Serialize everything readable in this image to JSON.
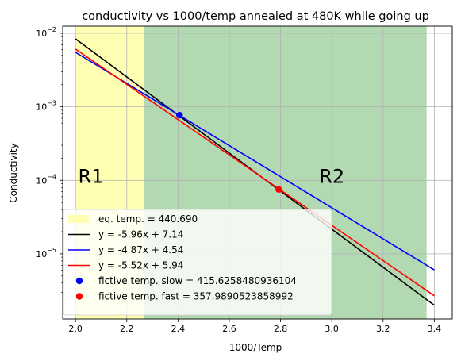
{
  "chart_data": {
    "type": "line",
    "title": "conductivity vs 1000/temp annealed at 480K while going up",
    "xlabel": "1000/Temp",
    "ylabel": "Conductivity",
    "xlim": [
      1.95,
      3.47
    ],
    "ylim": [
      1.3e-06,
      0.0125
    ],
    "yscale": "log",
    "grid": true,
    "legend_position": "lower-left",
    "x_ticks": [
      2.0,
      2.2,
      2.4,
      2.6,
      2.8,
      3.0,
      3.2,
      3.4
    ],
    "x_tick_labels": [
      "2.0",
      "2.2",
      "2.4",
      "2.6",
      "2.8",
      "3.0",
      "3.2",
      "3.4"
    ],
    "y_ticks": [
      1e-05,
      0.0001,
      0.001,
      0.01
    ],
    "y_tick_labels": [
      {
        "base": "10",
        "exp": "−5"
      },
      {
        "base": "10",
        "exp": "−4"
      },
      {
        "base": "10",
        "exp": "−3"
      },
      {
        "base": "10",
        "exp": "−2"
      }
    ],
    "regions": [
      {
        "label": "R1",
        "x_start": 2.0,
        "x_end": 2.269,
        "color": "#ffffb3",
        "label_x": 2.06,
        "label_y": 0.000115
      },
      {
        "label": "R2",
        "x_start": 2.269,
        "x_end": 3.37,
        "color": "#b3d9b3",
        "label_x": 3.0,
        "label_y": 0.000115
      }
    ],
    "series": [
      {
        "name": "y = -5.96x + 7.14",
        "type": "line",
        "color": "#000000",
        "slope": -5.96,
        "intercept": 7.14,
        "x": [
          2.0,
          3.4
        ]
      },
      {
        "name": "y = -4.87x + 4.54",
        "type": "line",
        "color": "#0000ff",
        "slope": -4.87,
        "intercept": 4.54,
        "x": [
          2.0,
          3.4
        ]
      },
      {
        "name": "y = -5.52x + 5.94",
        "type": "line",
        "color": "#ff0000",
        "slope": -5.52,
        "intercept": 5.94,
        "x": [
          2.0,
          3.4
        ]
      }
    ],
    "points": [
      {
        "name": "fictive temp. slow = 415.6258480936104",
        "color": "#0000ff",
        "x": 2.406,
        "y": 0.00077
      },
      {
        "name": "fictive temp. fast = 357.9890523858992",
        "color": "#ff0000",
        "x": 2.793,
        "y": 7.5e-05
      }
    ],
    "legend": [
      {
        "kind": "patch",
        "color": "#ffffb3",
        "label": "eq. temp. = 440.690"
      },
      {
        "kind": "line",
        "color": "#000000",
        "label": "y = -5.96x + 7.14"
      },
      {
        "kind": "line",
        "color": "#0000ff",
        "label": "y = -4.87x + 4.54"
      },
      {
        "kind": "line",
        "color": "#ff0000",
        "label": "y = -5.52x + 5.94"
      },
      {
        "kind": "dot",
        "color": "#0000ff",
        "label": "fictive temp. slow = 415.6258480936104"
      },
      {
        "kind": "dot",
        "color": "#ff0000",
        "label": "fictive temp. fast = 357.9890523858992"
      }
    ]
  }
}
